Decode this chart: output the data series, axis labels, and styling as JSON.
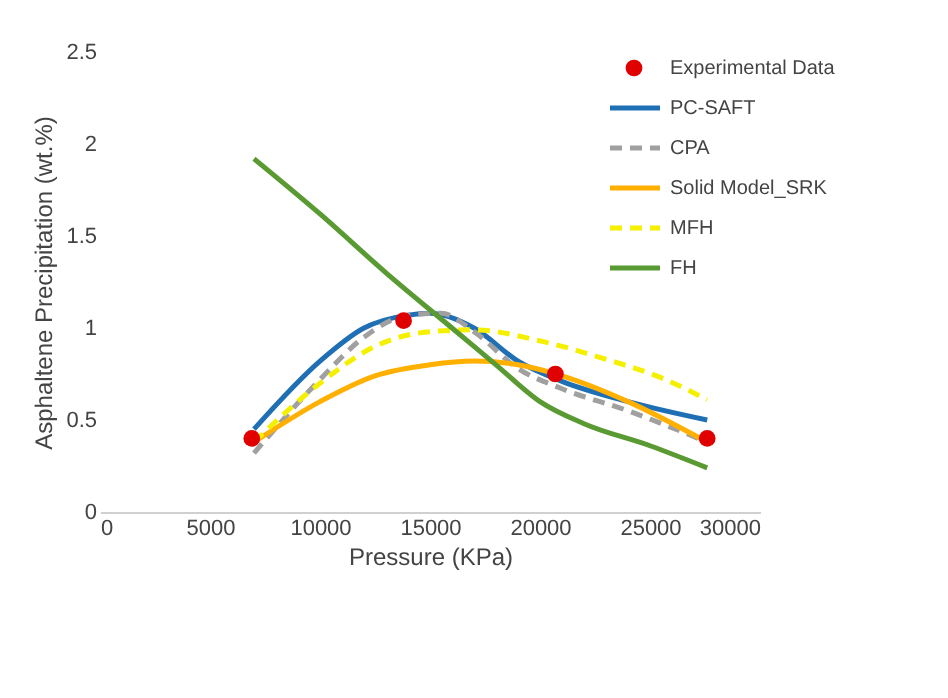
{
  "chart_data": {
    "type": "line",
    "xlabel": "Pressure (KPa)",
    "ylabel": "Asphaltene Precipitation (wt.%)",
    "xlim": [
      0,
      30000
    ],
    "xticks": [
      0,
      5000,
      10000,
      15000,
      20000,
      25000,
      30000
    ],
    "ylim": [
      0,
      2.5
    ],
    "yticks": [
      0,
      0.5,
      1,
      1.5,
      2,
      2.5
    ],
    "grid": false,
    "legend": "top right",
    "marker": "none",
    "series": [
      {
        "name": "Experimental Data",
        "type": "scatter",
        "marker": "circle",
        "color": "#e00000",
        "x": [
          6900,
          13800,
          20700,
          27600
        ],
        "values": [
          0.4,
          1.04,
          0.75,
          0.4
        ]
      },
      {
        "name": "PC-SAFT",
        "color": "#1f6fb5",
        "line_style": "solid",
        "x": [
          7000,
          10000,
          12000,
          14000,
          15000,
          17000,
          19000,
          21000,
          24000,
          27600
        ],
        "values": [
          0.45,
          0.82,
          1.0,
          1.07,
          1.08,
          1.0,
          0.82,
          0.71,
          0.6,
          0.5
        ]
      },
      {
        "name": "CPA",
        "color": "#a0a0a0",
        "line_style": "dashed",
        "x": [
          7000,
          10000,
          12000,
          14000,
          15500,
          17000,
          19000,
          21000,
          24000,
          27600
        ],
        "values": [
          0.32,
          0.72,
          0.95,
          1.07,
          1.08,
          0.98,
          0.78,
          0.67,
          0.55,
          0.38
        ]
      },
      {
        "name": "Solid Model_SRK",
        "color": "#ffb000",
        "line_style": "solid",
        "x": [
          7000,
          10000,
          12500,
          15000,
          17000,
          19000,
          21000,
          24000,
          27600
        ],
        "values": [
          0.38,
          0.6,
          0.74,
          0.8,
          0.82,
          0.8,
          0.74,
          0.6,
          0.38
        ]
      },
      {
        "name": "MFH",
        "color": "#f5f000",
        "line_style": "dashed",
        "x": [
          7000,
          10000,
          12500,
          15000,
          17000,
          20000,
          23000,
          25500,
          27600
        ],
        "values": [
          0.38,
          0.7,
          0.9,
          0.98,
          0.99,
          0.93,
          0.83,
          0.73,
          0.61
        ]
      },
      {
        "name": "FH",
        "color": "#5a9a32",
        "line_style": "solid",
        "x": [
          7000,
          10000,
          13000,
          16000,
          18000,
          20000,
          22000,
          25000,
          27600
        ],
        "values": [
          1.92,
          1.62,
          1.3,
          1.0,
          0.8,
          0.6,
          0.48,
          0.36,
          0.24
        ]
      }
    ]
  }
}
